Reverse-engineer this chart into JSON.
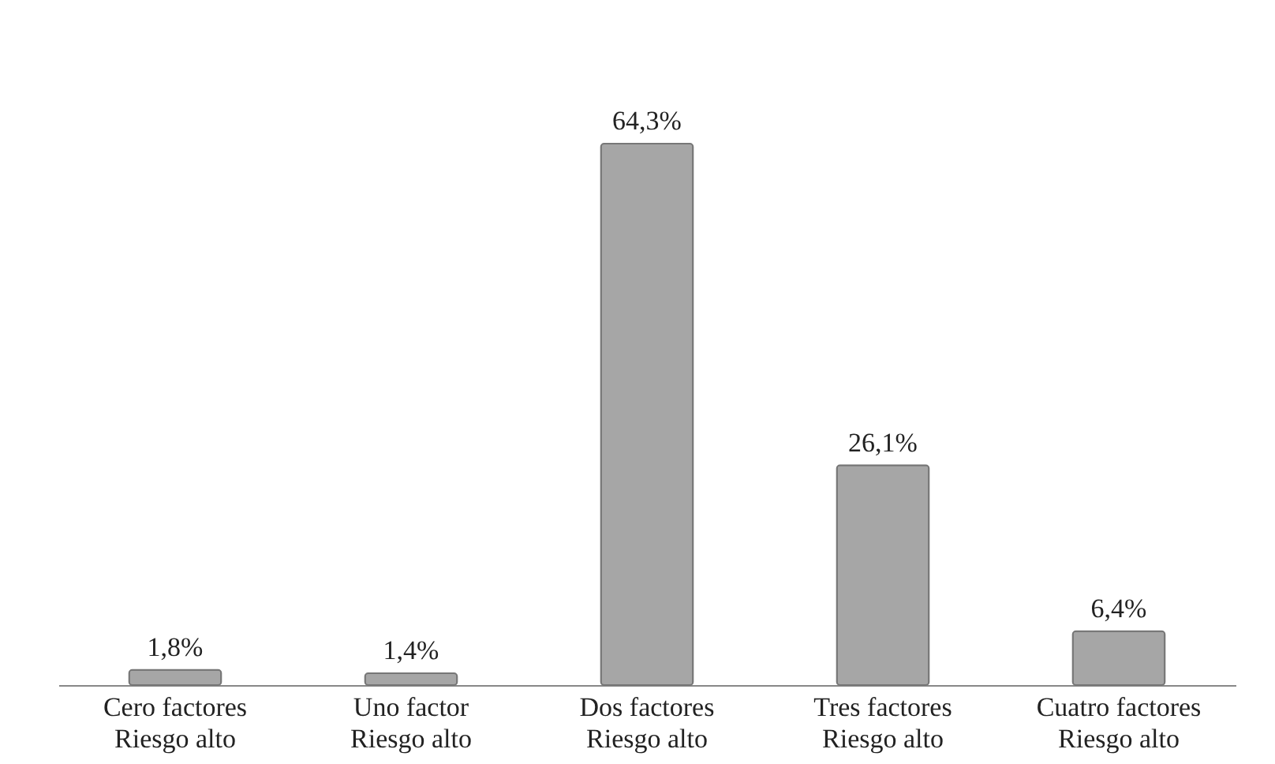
{
  "chart_data": {
    "type": "bar",
    "categories": [
      "Cero  factores\nRiesgo alto",
      "Uno  factor\nRiesgo alto",
      "Dos  factores\nRiesgo alto",
      "Tres  factores\nRiesgo alto",
      "Cuatro  factores\nRiesgo alto"
    ],
    "values": [
      1.8,
      1.4,
      64.3,
      26.1,
      6.4
    ],
    "value_labels": [
      "1,8%",
      "1,4%",
      "64,3%",
      "26,1%",
      "6,4%"
    ],
    "color": "#a6a6a6"
  }
}
